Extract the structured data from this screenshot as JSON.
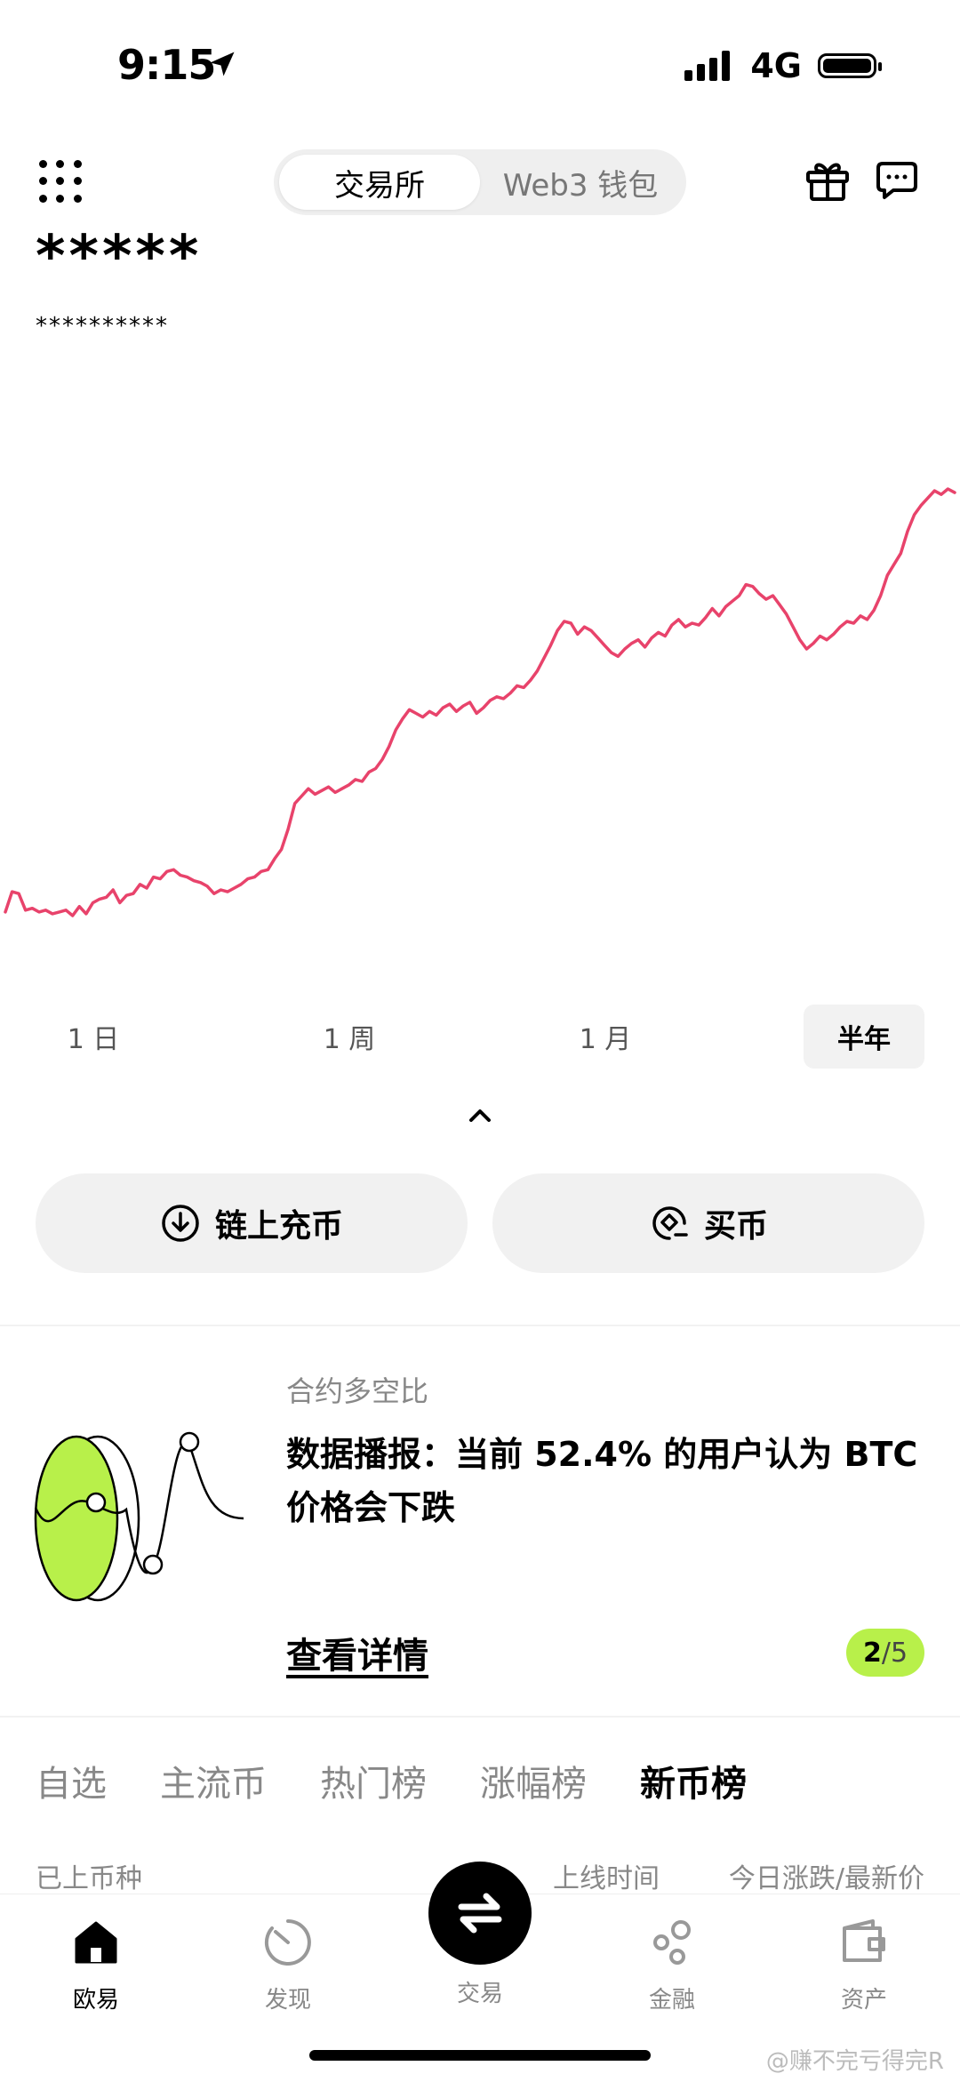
{
  "status": {
    "time": "9:15",
    "network": "4G"
  },
  "header": {
    "tabs": [
      {
        "label": "交易所",
        "active": true
      },
      {
        "label": "Web3 钱包",
        "active": false
      }
    ],
    "icons": [
      "grid-menu-icon",
      "gift-icon",
      "message-icon"
    ]
  },
  "balance": {
    "value": "*****",
    "sub": "**********"
  },
  "chart_data": {
    "type": "line",
    "title": "",
    "xlabel": "",
    "ylabel": "",
    "color": "#e8436b",
    "grid": false,
    "period": "半年",
    "values": [
      0.3,
      1.4,
      1.3,
      0.4,
      0.5,
      0.3,
      0.4,
      0.2,
      0.3,
      0.4,
      0.1,
      0.6,
      0.2,
      0.8,
      1.0,
      1.1,
      1.5,
      0.8,
      1.2,
      1.3,
      1.8,
      1.6,
      2.2,
      2.1,
      2.5,
      2.6,
      2.3,
      2.2,
      2.0,
      1.9,
      1.7,
      1.3,
      1.5,
      1.4,
      1.6,
      1.8,
      2.1,
      2.2,
      2.5,
      2.6,
      3.2,
      3.7,
      4.8,
      6.2,
      6.6,
      7.0,
      6.7,
      6.9,
      7.1,
      6.8,
      7.0,
      7.2,
      7.5,
      7.4,
      7.9,
      8.1,
      8.6,
      9.3,
      10.2,
      10.8,
      11.3,
      11.1,
      10.9,
      11.2,
      11.0,
      11.4,
      11.6,
      11.2,
      11.5,
      11.7,
      11.1,
      11.4,
      11.8,
      12.0,
      11.9,
      12.2,
      12.6,
      12.5,
      12.9,
      13.4,
      14.1,
      14.8,
      15.6,
      16.1,
      16.0,
      15.4,
      15.8,
      15.6,
      15.2,
      14.8,
      14.4,
      14.2,
      14.6,
      14.9,
      15.1,
      14.7,
      15.2,
      15.5,
      15.3,
      15.9,
      16.2,
      15.8,
      16.0,
      15.9,
      16.3,
      16.8,
      16.4,
      16.9,
      17.2,
      17.5,
      18.1,
      18.0,
      17.6,
      17.3,
      17.5,
      17.0,
      16.5,
      15.8,
      15.1,
      14.6,
      14.9,
      15.3,
      15.1,
      15.4,
      15.8,
      16.1,
      16.0,
      16.4,
      16.2,
      16.7,
      17.5,
      18.6,
      19.2,
      19.8,
      21.0,
      21.9,
      22.4,
      22.8,
      23.2,
      23.0,
      23.3,
      23.1
    ],
    "ticks": [
      "1 日",
      "1 周",
      "1 月",
      "半年"
    ]
  },
  "periods": [
    {
      "label": "1 日",
      "active": false
    },
    {
      "label": "1 周",
      "active": false
    },
    {
      "label": "1 月",
      "active": false
    },
    {
      "label": "半年",
      "active": true
    }
  ],
  "actions": {
    "deposit": "链上充币",
    "buy": "买币"
  },
  "promo": {
    "category": "合约多空比",
    "text": "数据播报：当前 52.4% 的用户认为 BTC 价格会下跌",
    "link": "查看详情",
    "page_current": "2",
    "page_sep": "/",
    "page_total": "5"
  },
  "market_tabs": [
    {
      "label": "自选",
      "active": false
    },
    {
      "label": "主流币",
      "active": false
    },
    {
      "label": "热门榜",
      "active": false
    },
    {
      "label": "涨幅榜",
      "active": false
    },
    {
      "label": "新币榜",
      "active": true
    }
  ],
  "columns": {
    "listed": "已上币种",
    "time": "上线时间",
    "change": "今日涨跌/最新价"
  },
  "nav": [
    {
      "label": "欧易",
      "icon": "home-icon",
      "active": true
    },
    {
      "label": "发现",
      "icon": "discover-icon",
      "active": false
    },
    {
      "label": "交易",
      "icon": "swap-icon",
      "active": false
    },
    {
      "label": "金融",
      "icon": "finance-icon",
      "active": false
    },
    {
      "label": "资产",
      "icon": "wallet-icon",
      "active": false
    }
  ],
  "watermark": "@赚不完亏得完R"
}
